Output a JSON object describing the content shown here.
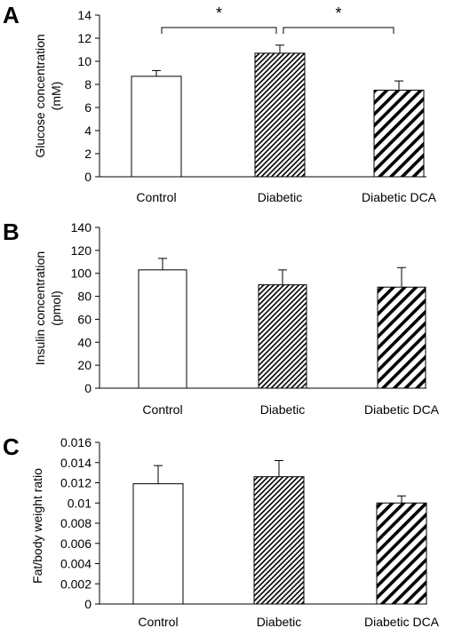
{
  "colors": {
    "axis": "#000000",
    "bar_fill_control": "#ffffff",
    "hatch": "#000000"
  },
  "chart_data": [
    {
      "panel": "A",
      "type": "bar",
      "categories": [
        "Control",
        "Diabetic",
        "Diabetic DCA"
      ],
      "values": [
        8.7,
        10.7,
        7.5
      ],
      "errors": [
        0.5,
        0.7,
        0.8
      ],
      "patterns": [
        "none",
        "fine-hatch",
        "wide-hatch"
      ],
      "ylabel": [
        "Glucose concentration",
        "(mM)"
      ],
      "ylim": [
        0,
        14
      ],
      "yticks": [
        0,
        2,
        4,
        6,
        8,
        10,
        12,
        14
      ],
      "ytick_labels": [
        "0",
        "2",
        "4",
        "6",
        "8",
        "10",
        "12",
        "14"
      ],
      "significance": [
        {
          "from": 0,
          "to": 1,
          "label": "*"
        },
        {
          "from": 1,
          "to": 2,
          "label": "*"
        }
      ]
    },
    {
      "panel": "B",
      "type": "bar",
      "categories": [
        "Control",
        "Diabetic",
        "Diabetic DCA"
      ],
      "values": [
        103,
        90,
        88
      ],
      "errors": [
        10,
        13,
        17
      ],
      "patterns": [
        "none",
        "fine-hatch",
        "wide-hatch"
      ],
      "ylabel": [
        "Insulin concentration",
        "(pmol)"
      ],
      "ylim": [
        0,
        140
      ],
      "yticks": [
        0,
        20,
        40,
        60,
        80,
        100,
        120,
        140
      ],
      "ytick_labels": [
        "0",
        "20",
        "40",
        "60",
        "80",
        "100",
        "120",
        "140"
      ],
      "significance": []
    },
    {
      "panel": "C",
      "type": "bar",
      "categories": [
        "Control",
        "Diabetic",
        "Diabetic DCA"
      ],
      "values": [
        0.0119,
        0.0126,
        0.01
      ],
      "errors": [
        0.0018,
        0.0016,
        0.0007
      ],
      "patterns": [
        "none",
        "fine-hatch",
        "wide-hatch"
      ],
      "ylabel": [
        "Fat/body weight ratio"
      ],
      "ylim": [
        0,
        0.016
      ],
      "yticks": [
        0,
        0.002,
        0.004,
        0.006,
        0.008,
        0.01,
        0.012,
        0.014,
        0.016
      ],
      "ytick_labels": [
        "0",
        "0.002",
        "0.004",
        "0.006",
        "0.008",
        "0.01",
        "0.012",
        "0.014",
        "0.016"
      ],
      "significance": []
    }
  ]
}
